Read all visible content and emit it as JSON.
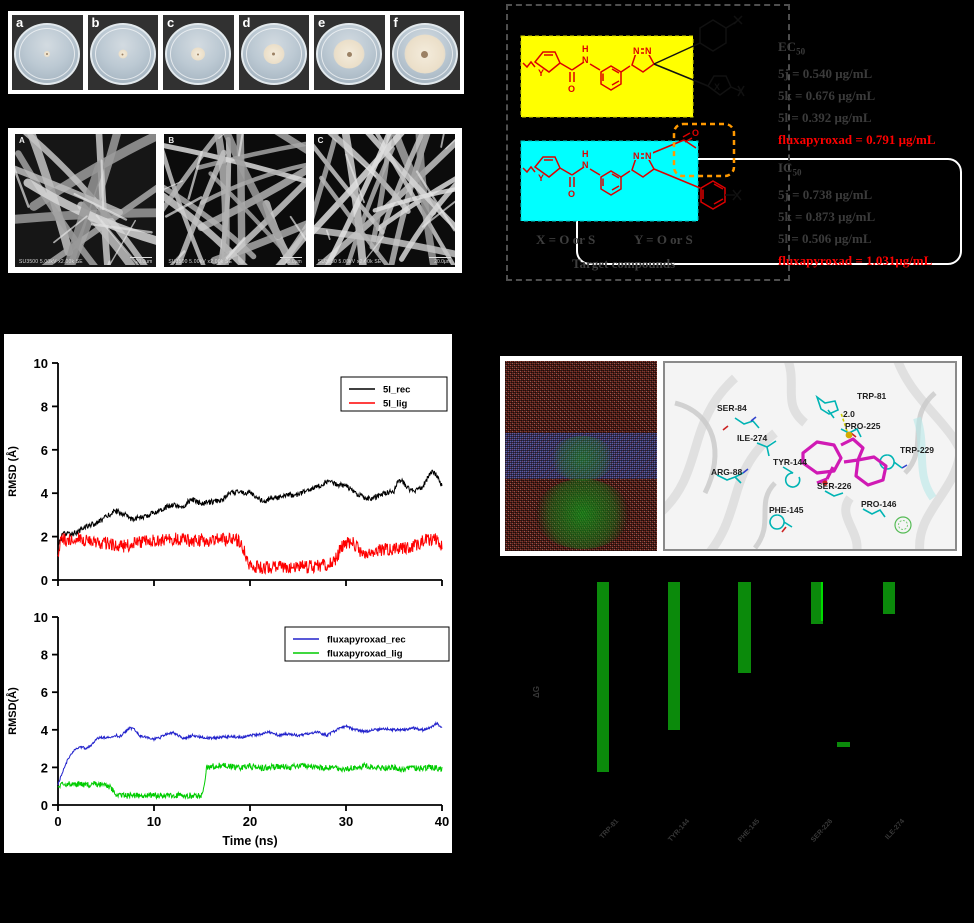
{
  "canvas": {
    "background": "#000000"
  },
  "petri_panel": {
    "labels": [
      "a",
      "b",
      "c",
      "d",
      "e",
      "f"
    ],
    "colony_diameters_rel": [
      0.1,
      0.14,
      0.22,
      0.34,
      0.5,
      0.66
    ]
  },
  "sem_panel": {
    "labels": [
      "A",
      "B",
      "C"
    ],
    "info_text": "SU3500 5.00kV x2.00k SE",
    "scale_text": "20.0μm"
  },
  "chem_panel": {
    "x_legend": "X = O or S",
    "y_legend": "Y = O or S",
    "caption": "Target compounds",
    "box_colors": {
      "yellow": "#ffff00",
      "cyan": "#00ffff",
      "orange_dash": "#ff9900",
      "callout": "#ffffff"
    },
    "atom_labels": {
      "Y1": "Y",
      "O1": "O",
      "H1": "H",
      "N1": "N",
      "Np1a": "N",
      "Np1b": "N",
      "X1": "X",
      "Y2": "Y",
      "O2": "O",
      "H2": "H",
      "N2": "N",
      "Np2a": "N",
      "Np2b": "N",
      "O3": "O"
    },
    "ec50": {
      "title": "EC",
      "title_sub": "50",
      "lines": [
        "5j = 0.540  μg/mL",
        "5k = 0.676  μg/mL",
        "5l = 0.392  μg/mL"
      ],
      "highlight": "fluxapyroxad = 0.791 μg/mL",
      "highlight_color": "#ff0000"
    },
    "ic50": {
      "title": "IC",
      "title_sub": "50",
      "lines": [
        "5j = 0.738 μg/mL",
        "5k = 0.873 μg/mL",
        "5l = 0.506  μg/mL"
      ],
      "highlight": "fluxapyroxad = 1.031μg/mL",
      "highlight_color": "#ff0000"
    }
  },
  "md_panel": {
    "residues": [
      "SER-84",
      "TRP-81",
      "PRO-225",
      "ILE-274",
      "TRP-229",
      "TYR-144",
      "ARG-88",
      "SER-226",
      "PHE-145",
      "PRO-146"
    ],
    "distance_label": "2.0"
  },
  "chart_data": [
    {
      "id": "rmsd_5l",
      "type": "line",
      "title": "",
      "xlabel": "",
      "ylabel": "RMSD (Å)",
      "xlim": [
        0,
        40
      ],
      "ylim": [
        0,
        10
      ],
      "yticks": [
        0,
        2,
        4,
        6,
        8,
        10
      ],
      "xticks": [
        0,
        10,
        20,
        30,
        40
      ],
      "xtick_labels_visible": false,
      "grid": false,
      "legend_position": "top-right",
      "series": [
        {
          "name": "5l_rec",
          "color": "#000000",
          "noise": 0.12,
          "anchors": [
            [
              0,
              1.6
            ],
            [
              0.5,
              2.1
            ],
            [
              2,
              2.2
            ],
            [
              3,
              2.5
            ],
            [
              4,
              2.6
            ],
            [
              5,
              2.9
            ],
            [
              6,
              3.2
            ],
            [
              7,
              3.0
            ],
            [
              7.5,
              2.8
            ],
            [
              8,
              2.85
            ],
            [
              9,
              2.9
            ],
            [
              10,
              3.1
            ],
            [
              11,
              3.3
            ],
            [
              12,
              3.5
            ],
            [
              12.5,
              3.4
            ],
            [
              13,
              3.3
            ],
            [
              13.5,
              3.6
            ],
            [
              14,
              3.7
            ],
            [
              15,
              3.5
            ],
            [
              16,
              3.6
            ],
            [
              17,
              3.7
            ],
            [
              18,
              4.0
            ],
            [
              19,
              4.1
            ],
            [
              19.5,
              4.0
            ],
            [
              20,
              4.05
            ],
            [
              21,
              3.7
            ],
            [
              21.5,
              3.6
            ],
            [
              22,
              3.75
            ],
            [
              23,
              3.8
            ],
            [
              24,
              3.9
            ],
            [
              25,
              3.95
            ],
            [
              26,
              4.1
            ],
            [
              27,
              4.3
            ],
            [
              28,
              4.5
            ],
            [
              28.5,
              4.55
            ],
            [
              29,
              4.4
            ],
            [
              30,
              4.35
            ],
            [
              31,
              4.0
            ],
            [
              31.5,
              3.9
            ],
            [
              32,
              3.75
            ],
            [
              33,
              3.8
            ],
            [
              34,
              4.0
            ],
            [
              35,
              4.1
            ],
            [
              35.5,
              4.6
            ],
            [
              36,
              4.5
            ],
            [
              36.5,
              4.2
            ],
            [
              37,
              4.1
            ],
            [
              38,
              4.3
            ],
            [
              38.5,
              4.7
            ],
            [
              39,
              5.0
            ],
            [
              39.5,
              4.8
            ],
            [
              40,
              4.3
            ]
          ]
        },
        {
          "name": "5l_lig",
          "color": "#ff0000",
          "noise": 0.3,
          "anchors": [
            [
              0,
              1.0
            ],
            [
              0.3,
              2.0
            ],
            [
              1,
              1.8
            ],
            [
              2,
              1.9
            ],
            [
              3,
              1.8
            ],
            [
              4,
              1.75
            ],
            [
              5,
              1.7
            ],
            [
              6,
              1.6
            ],
            [
              7,
              1.55
            ],
            [
              8,
              1.7
            ],
            [
              9,
              1.75
            ],
            [
              10,
              1.8
            ],
            [
              11,
              1.85
            ],
            [
              12,
              1.9
            ],
            [
              13,
              1.85
            ],
            [
              14,
              1.8
            ],
            [
              15,
              1.85
            ],
            [
              16,
              1.8
            ],
            [
              17,
              1.9
            ],
            [
              18,
              1.85
            ],
            [
              19,
              1.8
            ],
            [
              19.5,
              1.2
            ],
            [
              20,
              0.65
            ],
            [
              21,
              0.6
            ],
            [
              22,
              0.6
            ],
            [
              23,
              0.62
            ],
            [
              24,
              0.6
            ],
            [
              25,
              0.63
            ],
            [
              26,
              0.6
            ],
            [
              27,
              0.65
            ],
            [
              28,
              0.68
            ],
            [
              28.5,
              0.8
            ],
            [
              29,
              1.0
            ],
            [
              29.5,
              1.5
            ],
            [
              30,
              1.7
            ],
            [
              30.5,
              1.75
            ],
            [
              31,
              1.6
            ],
            [
              31.5,
              1.3
            ],
            [
              32,
              1.25
            ],
            [
              33,
              1.35
            ],
            [
              34,
              1.4
            ],
            [
              35,
              1.45
            ],
            [
              36,
              1.5
            ],
            [
              37,
              1.55
            ],
            [
              38,
              1.8
            ],
            [
              39,
              1.9
            ],
            [
              39.5,
              1.85
            ],
            [
              40,
              1.5
            ]
          ]
        }
      ]
    },
    {
      "id": "rmsd_fluxapyroxad",
      "type": "line",
      "title": "",
      "xlabel": "Time (ns)",
      "ylabel": "RMSD(Å)",
      "xlim": [
        0,
        40
      ],
      "ylim": [
        0,
        10
      ],
      "yticks": [
        0,
        2,
        4,
        6,
        8,
        10
      ],
      "xticks": [
        0,
        10,
        20,
        30,
        40
      ],
      "xtick_labels_visible": true,
      "grid": false,
      "legend_position": "top-right",
      "series": [
        {
          "name": "fluxapyroxad_rec",
          "color": "#2222cc",
          "noise": 0.07,
          "anchors": [
            [
              0,
              1.1
            ],
            [
              0.5,
              1.8
            ],
            [
              1,
              2.4
            ],
            [
              1.5,
              2.8
            ],
            [
              2,
              3.0
            ],
            [
              2.5,
              3.1
            ],
            [
              3,
              3.0
            ],
            [
              3.5,
              3.2
            ],
            [
              4,
              3.5
            ],
            [
              4.5,
              3.6
            ],
            [
              5,
              3.55
            ],
            [
              5.5,
              3.6
            ],
            [
              6,
              3.7
            ],
            [
              6.5,
              3.65
            ],
            [
              7,
              3.9
            ],
            [
              7.5,
              4.1
            ],
            [
              8,
              4.0
            ],
            [
              8.5,
              3.7
            ],
            [
              9,
              3.65
            ],
            [
              9.5,
              3.6
            ],
            [
              10,
              3.5
            ],
            [
              10.5,
              3.55
            ],
            [
              11,
              3.7
            ],
            [
              11.5,
              3.8
            ],
            [
              12,
              3.85
            ],
            [
              12.5,
              3.7
            ],
            [
              13,
              3.55
            ],
            [
              13.5,
              3.6
            ],
            [
              14,
              3.7
            ],
            [
              14.5,
              3.65
            ],
            [
              15,
              3.6
            ],
            [
              16,
              3.55
            ],
            [
              17,
              3.6
            ],
            [
              18,
              3.65
            ],
            [
              19,
              3.6
            ],
            [
              20,
              3.7
            ],
            [
              21,
              3.75
            ],
            [
              22,
              3.9
            ],
            [
              23,
              3.7
            ],
            [
              24,
              3.8
            ],
            [
              25,
              3.7
            ],
            [
              26,
              3.8
            ],
            [
              27,
              3.9
            ],
            [
              28,
              3.7
            ],
            [
              29,
              4.0
            ],
            [
              30,
              4.2
            ],
            [
              30.5,
              4.1
            ],
            [
              31,
              4.0
            ],
            [
              32,
              3.9
            ],
            [
              33,
              4.0
            ],
            [
              34,
              4.05
            ],
            [
              35,
              4.0
            ],
            [
              36,
              4.0
            ],
            [
              37,
              4.1
            ],
            [
              38,
              4.0
            ],
            [
              39,
              4.2
            ],
            [
              39.5,
              4.35
            ],
            [
              40,
              4.05
            ]
          ]
        },
        {
          "name": "fluxapyroxad_lig",
          "color": "#00cc00",
          "noise": 0.16,
          "anchors": [
            [
              0,
              0.9
            ],
            [
              0.5,
              1.1
            ],
            [
              1,
              1.15
            ],
            [
              2,
              1.1
            ],
            [
              3,
              1.1
            ],
            [
              4,
              1.12
            ],
            [
              5,
              1.05
            ],
            [
              5.5,
              0.9
            ],
            [
              6,
              0.6
            ],
            [
              6.5,
              0.5
            ],
            [
              7,
              0.48
            ],
            [
              8,
              0.5
            ],
            [
              9,
              0.52
            ],
            [
              10,
              0.5
            ],
            [
              11,
              0.5
            ],
            [
              12,
              0.52
            ],
            [
              13,
              0.5
            ],
            [
              14,
              0.5
            ],
            [
              15,
              0.5
            ],
            [
              15.3,
              1.2
            ],
            [
              15.5,
              2.0
            ],
            [
              16,
              2.05
            ],
            [
              17,
              2.1
            ],
            [
              18,
              2.05
            ],
            [
              19,
              2.0
            ],
            [
              20,
              2.05
            ],
            [
              21,
              1.95
            ],
            [
              22,
              2.0
            ],
            [
              23,
              2.05
            ],
            [
              24,
              2.0
            ],
            [
              25,
              2.1
            ],
            [
              26,
              2.05
            ],
            [
              27,
              2.0
            ],
            [
              28,
              2.0
            ],
            [
              29,
              1.95
            ],
            [
              30,
              1.9
            ],
            [
              31,
              2.0
            ],
            [
              32,
              2.1
            ],
            [
              33,
              2.0
            ],
            [
              34,
              1.95
            ],
            [
              35,
              2.0
            ],
            [
              36,
              1.9
            ],
            [
              37,
              2.0
            ],
            [
              38,
              1.95
            ],
            [
              39,
              2.0
            ],
            [
              40,
              1.9
            ]
          ]
        }
      ]
    },
    {
      "id": "residue_energy",
      "type": "bar",
      "bar_color": "#0b8a0b",
      "categories": [
        "TRP-81",
        "TYR-144",
        "PHE-145",
        "SER-226",
        "ILE-274"
      ],
      "values": [
        -1.0,
        -0.78,
        -0.48,
        -0.22,
        -0.17
      ],
      "values_unit": "relative depth (axis scale not legible in source)",
      "floating_bar": {
        "between_categories": [
          3,
          4
        ],
        "from": -0.84,
        "to": -0.87
      },
      "ylabel": "ΔG",
      "axis_text_color": "#383838",
      "legibility_note": "tick labels rendered nearly black-on-black in source; text approximate"
    }
  ]
}
